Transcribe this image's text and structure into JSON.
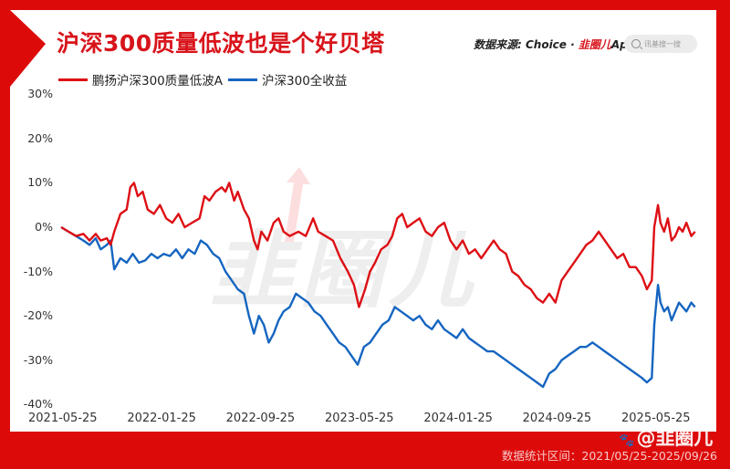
{
  "header": {
    "title": "沪深300质量低波也是个好贝塔",
    "source_prefix": "数据来源: Choice · ",
    "source_brand": "韭圈儿",
    "source_suffix": "App",
    "search_placeholder": "讯基搜一搜"
  },
  "legend": [
    {
      "label": "鹏扬沪深300质量低波A",
      "color": "#dd0f14"
    },
    {
      "label": "沪深300全收益",
      "color": "#1565c0"
    }
  ],
  "watermark": "韭圈儿",
  "footer": {
    "range_text": "数据统计区间：2021/05/25-2025/09/26",
    "weibo_handle": "@韭圈儿"
  },
  "colors": {
    "frame": "#dd0a0a",
    "title": "#d8141b",
    "series_red": "#dd0f14",
    "series_blue": "#1565c0"
  },
  "chart_data": {
    "type": "line",
    "title": "沪深300质量低波也是个好贝塔",
    "xlabel": "",
    "ylabel": "",
    "ylim": [
      -40,
      30
    ],
    "y_ticks": [
      "30%",
      "20%",
      "10%",
      "0%",
      "-10%",
      "-20%",
      "-30%",
      "-40%"
    ],
    "y_tick_values": [
      30,
      20,
      10,
      0,
      -10,
      -20,
      -30,
      -40
    ],
    "x_ticks": [
      "2021-05-25",
      "2022-01-25",
      "2022-09-25",
      "2023-05-25",
      "2024-01-25",
      "2024-09-25",
      "2025-05-25"
    ],
    "x_unit": "months since 2021-05-25",
    "x_range": [
      0,
      52
    ],
    "grid": false,
    "legend_position": "top-left",
    "series": [
      {
        "name": "鹏扬沪深300质量低波A",
        "color": "#dd0f14",
        "points": [
          [
            0,
            0
          ],
          [
            0.6,
            -1
          ],
          [
            1.2,
            -2
          ],
          [
            1.8,
            -1.5
          ],
          [
            2.3,
            -3
          ],
          [
            2.8,
            -1.5
          ],
          [
            3.2,
            -3
          ],
          [
            3.7,
            -2.5
          ],
          [
            4.0,
            -4
          ],
          [
            4.3,
            -1
          ],
          [
            4.8,
            3
          ],
          [
            5.3,
            4
          ],
          [
            5.6,
            9
          ],
          [
            5.9,
            10
          ],
          [
            6.2,
            7
          ],
          [
            6.6,
            8
          ],
          [
            7.0,
            4
          ],
          [
            7.5,
            3
          ],
          [
            8.0,
            5
          ],
          [
            8.5,
            2
          ],
          [
            9.0,
            1
          ],
          [
            9.5,
            3
          ],
          [
            10.0,
            0
          ],
          [
            10.6,
            1
          ],
          [
            11.2,
            2
          ],
          [
            11.6,
            7
          ],
          [
            12.0,
            6
          ],
          [
            12.5,
            8
          ],
          [
            13.0,
            9
          ],
          [
            13.3,
            8
          ],
          [
            13.6,
            10
          ],
          [
            14.0,
            6
          ],
          [
            14.3,
            8
          ],
          [
            14.8,
            4
          ],
          [
            15.2,
            2
          ],
          [
            15.6,
            -3
          ],
          [
            15.9,
            -5
          ],
          [
            16.2,
            -1
          ],
          [
            16.7,
            -3
          ],
          [
            17.2,
            1
          ],
          [
            17.6,
            2
          ],
          [
            18.0,
            -1
          ],
          [
            18.5,
            -2
          ],
          [
            19.2,
            -1
          ],
          [
            19.8,
            -2
          ],
          [
            20.4,
            2
          ],
          [
            20.8,
            -1
          ],
          [
            21.4,
            -2
          ],
          [
            22.0,
            -3
          ],
          [
            22.6,
            -7
          ],
          [
            23.2,
            -10
          ],
          [
            23.7,
            -13
          ],
          [
            24.1,
            -18
          ],
          [
            24.6,
            -14
          ],
          [
            25.0,
            -10
          ],
          [
            25.4,
            -8
          ],
          [
            25.9,
            -5
          ],
          [
            26.4,
            -4
          ],
          [
            26.8,
            -2
          ],
          [
            27.2,
            2
          ],
          [
            27.6,
            3
          ],
          [
            28.0,
            0
          ],
          [
            28.5,
            1
          ],
          [
            29.0,
            2
          ],
          [
            29.5,
            -1
          ],
          [
            30.0,
            -2
          ],
          [
            30.5,
            0
          ],
          [
            31.0,
            1
          ],
          [
            31.5,
            -3
          ],
          [
            32.0,
            -5
          ],
          [
            32.5,
            -3
          ],
          [
            33.0,
            -6
          ],
          [
            33.5,
            -5
          ],
          [
            34.0,
            -7
          ],
          [
            34.5,
            -5
          ],
          [
            35.0,
            -3
          ],
          [
            35.5,
            -5
          ],
          [
            36.0,
            -6
          ],
          [
            36.5,
            -10
          ],
          [
            37.0,
            -11
          ],
          [
            37.5,
            -13
          ],
          [
            38.0,
            -14
          ],
          [
            38.5,
            -16
          ],
          [
            39.0,
            -17
          ],
          [
            39.5,
            -15
          ],
          [
            40.0,
            -17
          ],
          [
            40.5,
            -12
          ],
          [
            41.0,
            -10
          ],
          [
            41.5,
            -8
          ],
          [
            42.0,
            -6
          ],
          [
            42.5,
            -4
          ],
          [
            43.0,
            -3
          ],
          [
            43.5,
            -1
          ],
          [
            44.0,
            -3
          ],
          [
            44.5,
            -5
          ],
          [
            45.0,
            -7
          ],
          [
            45.5,
            -6
          ],
          [
            46.0,
            -9
          ],
          [
            46.5,
            -9
          ],
          [
            47.0,
            -11
          ],
          [
            47.4,
            -14
          ],
          [
            47.8,
            -12
          ],
          [
            48.0,
            0
          ],
          [
            48.3,
            5
          ],
          [
            48.5,
            1
          ],
          [
            48.8,
            -1
          ],
          [
            49.1,
            2
          ],
          [
            49.4,
            -3
          ],
          [
            49.7,
            -2
          ],
          [
            50.0,
            0
          ],
          [
            50.3,
            -1
          ],
          [
            50.6,
            1
          ],
          [
            51.0,
            -2
          ],
          [
            51.3,
            -1
          ]
        ]
      },
      {
        "name": "沪深300全收益",
        "color": "#1565c0",
        "points": [
          [
            0,
            0
          ],
          [
            0.6,
            -1
          ],
          [
            1.2,
            -2
          ],
          [
            1.8,
            -3
          ],
          [
            2.3,
            -4
          ],
          [
            2.8,
            -2.5
          ],
          [
            3.2,
            -5
          ],
          [
            3.7,
            -4
          ],
          [
            4.0,
            -3
          ],
          [
            4.3,
            -9.5
          ],
          [
            4.8,
            -7
          ],
          [
            5.3,
            -8
          ],
          [
            5.8,
            -6
          ],
          [
            6.3,
            -8
          ],
          [
            6.8,
            -7.5
          ],
          [
            7.3,
            -6
          ],
          [
            7.8,
            -7
          ],
          [
            8.3,
            -6
          ],
          [
            8.8,
            -6.5
          ],
          [
            9.3,
            -5
          ],
          [
            9.8,
            -7
          ],
          [
            10.3,
            -5
          ],
          [
            10.8,
            -6
          ],
          [
            11.3,
            -3
          ],
          [
            11.8,
            -4
          ],
          [
            12.3,
            -6
          ],
          [
            12.8,
            -7
          ],
          [
            13.3,
            -10
          ],
          [
            13.8,
            -12
          ],
          [
            14.3,
            -14
          ],
          [
            14.8,
            -15
          ],
          [
            15.2,
            -20
          ],
          [
            15.6,
            -24
          ],
          [
            16.0,
            -20
          ],
          [
            16.4,
            -22
          ],
          [
            16.8,
            -26
          ],
          [
            17.2,
            -24
          ],
          [
            17.6,
            -21
          ],
          [
            18.0,
            -19
          ],
          [
            18.5,
            -18
          ],
          [
            19.0,
            -15
          ],
          [
            19.5,
            -16
          ],
          [
            20.0,
            -17
          ],
          [
            20.5,
            -19
          ],
          [
            21.0,
            -20
          ],
          [
            21.5,
            -22
          ],
          [
            22.0,
            -24
          ],
          [
            22.5,
            -26
          ],
          [
            23.0,
            -27
          ],
          [
            23.5,
            -29
          ],
          [
            24.0,
            -31
          ],
          [
            24.5,
            -27
          ],
          [
            25.0,
            -26
          ],
          [
            25.5,
            -24
          ],
          [
            26.0,
            -22
          ],
          [
            26.5,
            -21
          ],
          [
            27.0,
            -18
          ],
          [
            27.5,
            -19
          ],
          [
            28.0,
            -20
          ],
          [
            28.5,
            -21
          ],
          [
            29.0,
            -20
          ],
          [
            29.5,
            -22
          ],
          [
            30.0,
            -23
          ],
          [
            30.5,
            -21
          ],
          [
            31.0,
            -23
          ],
          [
            31.5,
            -24
          ],
          [
            32.0,
            -25
          ],
          [
            32.5,
            -23
          ],
          [
            33.0,
            -25
          ],
          [
            33.5,
            -26
          ],
          [
            34.0,
            -27
          ],
          [
            34.5,
            -28
          ],
          [
            35.0,
            -28
          ],
          [
            35.5,
            -29
          ],
          [
            36.0,
            -30
          ],
          [
            36.5,
            -31
          ],
          [
            37.0,
            -32
          ],
          [
            37.5,
            -33
          ],
          [
            38.0,
            -34
          ],
          [
            38.5,
            -35
          ],
          [
            39.0,
            -36
          ],
          [
            39.5,
            -33
          ],
          [
            40.0,
            -32
          ],
          [
            40.5,
            -30
          ],
          [
            41.0,
            -29
          ],
          [
            41.5,
            -28
          ],
          [
            42.0,
            -27
          ],
          [
            42.5,
            -27
          ],
          [
            43.0,
            -26
          ],
          [
            43.5,
            -27
          ],
          [
            44.0,
            -28
          ],
          [
            44.5,
            -29
          ],
          [
            45.0,
            -30
          ],
          [
            45.5,
            -31
          ],
          [
            46.0,
            -32
          ],
          [
            46.5,
            -33
          ],
          [
            47.0,
            -34
          ],
          [
            47.4,
            -35
          ],
          [
            47.8,
            -34
          ],
          [
            48.0,
            -22
          ],
          [
            48.3,
            -13
          ],
          [
            48.5,
            -17
          ],
          [
            48.8,
            -19
          ],
          [
            49.1,
            -18
          ],
          [
            49.4,
            -21
          ],
          [
            49.7,
            -19
          ],
          [
            50.0,
            -17
          ],
          [
            50.3,
            -18
          ],
          [
            50.6,
            -19
          ],
          [
            51.0,
            -17
          ],
          [
            51.3,
            -18
          ]
        ]
      }
    ]
  }
}
